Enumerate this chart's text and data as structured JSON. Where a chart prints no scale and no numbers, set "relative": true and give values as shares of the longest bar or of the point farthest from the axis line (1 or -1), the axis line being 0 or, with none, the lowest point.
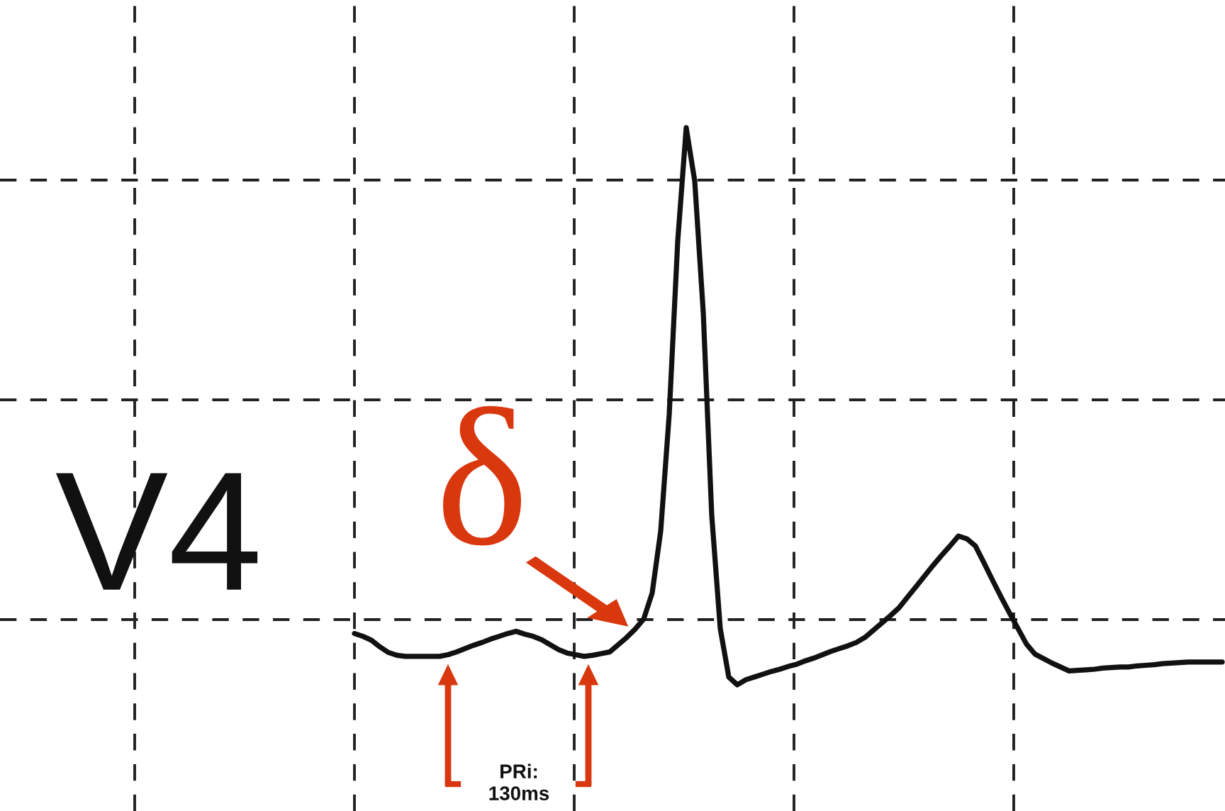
{
  "chart_data": {
    "type": "line",
    "relative": true,
    "grid": true,
    "legend": false,
    "marker": "none",
    "line_style": "solid",
    "categories": [
      null,
      null,
      null,
      null,
      null,
      null,
      null,
      null,
      null,
      null,
      null,
      null,
      null,
      null,
      null,
      null,
      null,
      null,
      null,
      null,
      null,
      null,
      null,
      null,
      null,
      null,
      null,
      null,
      null,
      null,
      null,
      null,
      null,
      null,
      null,
      null,
      null,
      null,
      null,
      null,
      null,
      null,
      null,
      null,
      null,
      null,
      null,
      null,
      null,
      null,
      null,
      null,
      null,
      null,
      null,
      null,
      null,
      null,
      null,
      null,
      null,
      null,
      null,
      null,
      null,
      null,
      null,
      null,
      null,
      null,
      null,
      null,
      null,
      null,
      null,
      null,
      null,
      null,
      null,
      null,
      null,
      null,
      null,
      null,
      null,
      null,
      null,
      null,
      null,
      null,
      null,
      null,
      null,
      null,
      null,
      null,
      null,
      null,
      null,
      null,
      null,
      null,
      null
    ],
    "series": [
      {
        "color": "#111111",
        "values": [
          0.092,
          0.087,
          0.08,
          0.068,
          0.058,
          0.053,
          0.051,
          0.051,
          0.051,
          0.051,
          0.051,
          0.054,
          0.059,
          0.065,
          0.071,
          0.076,
          0.082,
          0.087,
          0.092,
          0.096,
          0.091,
          0.087,
          0.081,
          0.072,
          0.063,
          0.057,
          0.054,
          0.051,
          0.053,
          0.056,
          0.059,
          0.072,
          0.085,
          0.1,
          0.118,
          0.165,
          0.276,
          0.485,
          0.796,
          1,
          0.904,
          0.669,
          0.304,
          0.101,
          0.014,
          0,
          0.009,
          0.014,
          0.019,
          0.024,
          0.028,
          0.033,
          0.037,
          0.043,
          0.048,
          0.054,
          0.06,
          0.065,
          0.07,
          0.076,
          0.085,
          0.098,
          0.111,
          0.124,
          0.138,
          0.157,
          0.176,
          0.195,
          0.214,
          0.232,
          0.249,
          0.267,
          0.262,
          0.249,
          0.219,
          0.188,
          0.158,
          0.129,
          0.101,
          0.073,
          0.055,
          0.047,
          0.039,
          0.032,
          0.025,
          0.026,
          0.027,
          0.028,
          0.03,
          0.031,
          0.032,
          0.032,
          0.034,
          0.035,
          0.036,
          0.038,
          0.039,
          0.04,
          0.041,
          0.041,
          0.041,
          0.041,
          0.041
        ]
      }
    ],
    "annotations": [
      "V4",
      "δ",
      "PRi:\n130ms"
    ]
  }
}
